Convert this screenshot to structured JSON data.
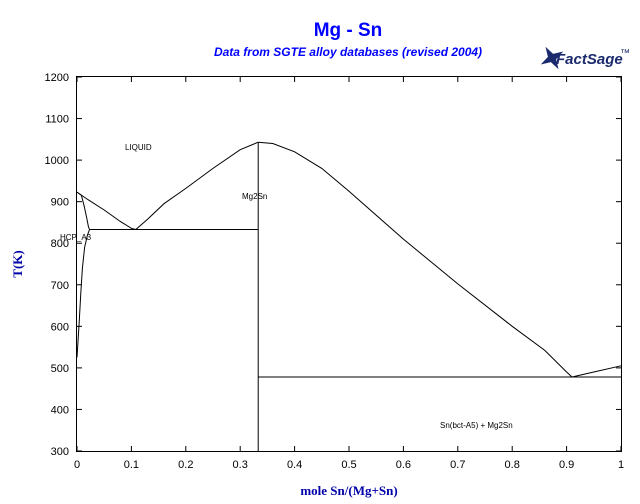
{
  "chart_data": {
    "type": "line",
    "title": "Mg - Sn",
    "subtitle": "Data from SGTE alloy databases (revised 2004)",
    "xlabel": "mole Sn/(Mg+Sn)",
    "ylabel": "T(K)",
    "xlim": [
      0,
      1
    ],
    "ylim": [
      300,
      1200
    ],
    "x_ticks": [
      "0",
      "0.1",
      "0.2",
      "0.3",
      "0.4",
      "0.5",
      "0.6",
      "0.7",
      "0.8",
      "0.9",
      "1"
    ],
    "y_ticks": [
      "300",
      "400",
      "500",
      "600",
      "700",
      "800",
      "900",
      "1000",
      "1100",
      "1200"
    ],
    "grid": false,
    "colors": {
      "title": "#0000ff",
      "axes": "#000000",
      "lines": "#000000",
      "label": "#0000aa",
      "logo": "#1a2a6c"
    },
    "labels": {
      "liquid": "LIQUID",
      "mg2sn": "Mg2Sn",
      "hcp": "HCP_A3",
      "sn_mix": "Sn(bct-A5) + Mg2Sn"
    },
    "logo": {
      "main": "FactSage",
      "tm": "™"
    },
    "series": [
      {
        "values": [
          [
            0.0,
            923
          ],
          [
            0.02,
            905
          ],
          [
            0.05,
            880
          ],
          [
            0.08,
            852
          ],
          [
            0.1,
            836
          ],
          [
            0.108,
            833
          ]
        ]
      },
      {
        "values": [
          [
            0.108,
            833
          ],
          [
            0.13,
            858
          ],
          [
            0.16,
            895
          ],
          [
            0.2,
            932
          ],
          [
            0.25,
            980
          ],
          [
            0.3,
            1025
          ],
          [
            0.333,
            1043
          ]
        ]
      },
      {
        "values": [
          [
            0.333,
            1043
          ],
          [
            0.36,
            1040
          ],
          [
            0.4,
            1020
          ],
          [
            0.45,
            980
          ],
          [
            0.5,
            925
          ],
          [
            0.6,
            810
          ],
          [
            0.7,
            702
          ],
          [
            0.8,
            600
          ],
          [
            0.86,
            542
          ],
          [
            0.9,
            490
          ],
          [
            0.91,
            478
          ]
        ]
      },
      {
        "values": [
          [
            0.91,
            478
          ],
          [
            0.95,
            490
          ],
          [
            1.0,
            505
          ]
        ]
      },
      {
        "values": [
          [
            0.0,
            923
          ],
          [
            0.008,
            915
          ],
          [
            0.013,
            890
          ],
          [
            0.018,
            860
          ],
          [
            0.021,
            840
          ],
          [
            0.023,
            833
          ]
        ]
      },
      {
        "values": [
          [
            0.0,
            525
          ],
          [
            0.004,
            610
          ],
          [
            0.007,
            680
          ],
          [
            0.01,
            740
          ],
          [
            0.014,
            790
          ],
          [
            0.019,
            818
          ],
          [
            0.023,
            833
          ]
        ]
      },
      {
        "values": [
          [
            0.023,
            833
          ],
          [
            0.333,
            833
          ]
        ]
      },
      {
        "values": [
          [
            0.333,
            300
          ],
          [
            0.333,
            1043
          ]
        ]
      },
      {
        "values": [
          [
            0.333,
            478
          ],
          [
            1.0,
            478
          ]
        ]
      }
    ]
  }
}
